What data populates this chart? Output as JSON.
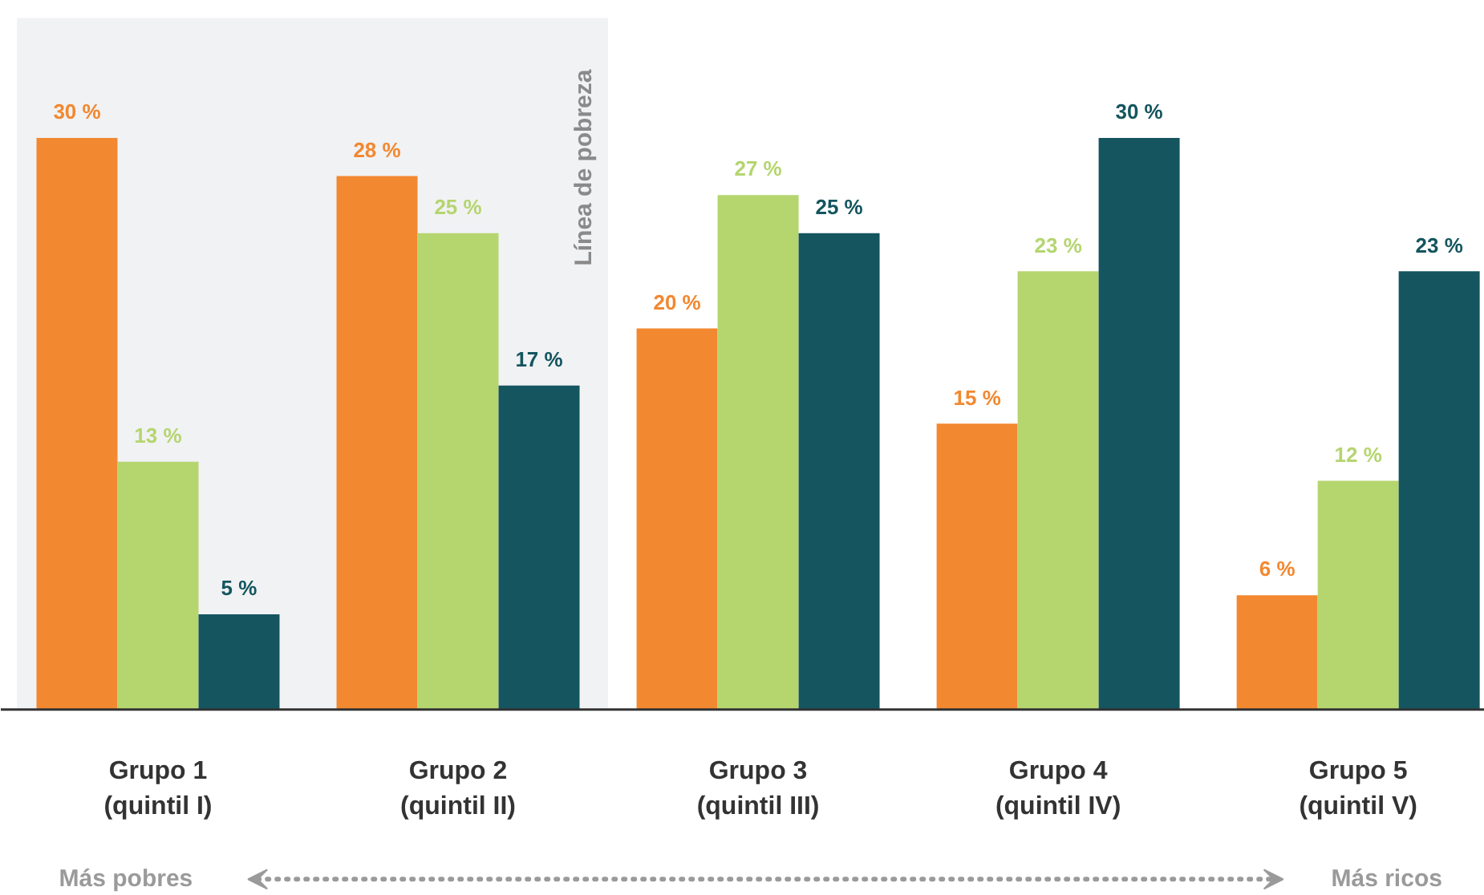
{
  "chart_data": {
    "type": "bar",
    "categories": [
      "Grupo 1\n(quintil I)",
      "Grupo 2\n(quintil II)",
      "Grupo 3\n(quintil III)",
      "Grupo 4\n(quintil IV)",
      "Grupo 5\n(quintil V)"
    ],
    "series": [
      {
        "color": "#f28830",
        "values": [
          30,
          28,
          20,
          15,
          6
        ],
        "value_labels": [
          "30 %",
          "28 %",
          "20 %",
          "15 %",
          "6 %"
        ]
      },
      {
        "color": "#b5d56f",
        "values": [
          13,
          25,
          27,
          23,
          12
        ],
        "value_labels": [
          "13 %",
          "25 %",
          "27 %",
          "23 %",
          "12 %"
        ]
      },
      {
        "color": "#14555f",
        "values": [
          5,
          17,
          25,
          30,
          23
        ],
        "value_labels": [
          "5 %",
          "17 %",
          "25 %",
          "30 %",
          "23 %"
        ]
      }
    ],
    "bands": [
      {
        "axis": "x",
        "from": "Grupo 1\n(quintil I)",
        "to": "Grupo 2\n(quintil II)",
        "label": "Línea de pobreza",
        "color": "#f1f2f4"
      }
    ],
    "annotations": [
      "Más pobres",
      "Más ricos"
    ],
    "grid": false
  }
}
